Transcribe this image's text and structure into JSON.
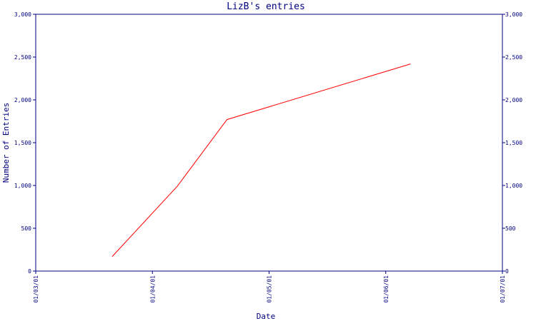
{
  "chart_data": {
    "type": "line",
    "title": "LizB's entries",
    "xlabel": "Date",
    "ylabel": "Number of Entries",
    "x_tick_labels": [
      "01/03/01",
      "01/04/01",
      "01/05/01",
      "01/06/01",
      "01/07/01"
    ],
    "y_tick_labels": [
      "0",
      "500",
      "1,000",
      "1,500",
      "2,000",
      "2,500",
      "3,000"
    ],
    "ylim": [
      0,
      3000
    ],
    "xlim": [
      "2001-03-01",
      "2001-07-01"
    ],
    "series": [
      {
        "x": [
          "2001-03-21",
          "2001-04-07",
          "2001-04-20",
          "2001-06-07"
        ],
        "y": [
          170,
          990,
          1770,
          2420
        ]
      }
    ],
    "colors": {
      "axis": "#000080",
      "line": "#ff0000"
    },
    "grid": false,
    "right_axis": true
  }
}
